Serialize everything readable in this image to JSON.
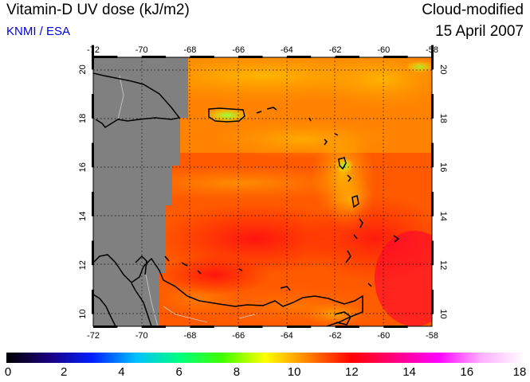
{
  "header": {
    "title": "Vitamin-D UV dose (kJ/m2)",
    "source": "KNMI / ESA",
    "product": "Cloud-modified",
    "date": "15 April 2007"
  },
  "map": {
    "lon_range": [
      -72,
      -58
    ],
    "lat_range": [
      9.5,
      20.5
    ],
    "lon_ticks": [
      "-72",
      "-70",
      "-68",
      "-66",
      "-64",
      "-62",
      "-60",
      "-58"
    ],
    "lat_ticks": [
      "10",
      "12",
      "14",
      "16",
      "18",
      "20"
    ],
    "no_data_color": "#808080",
    "coastline_color": "#000000",
    "border_color": "#cccccc",
    "gridline_style": "dotted"
  },
  "colorbar": {
    "min": 0,
    "max": 18,
    "labels": [
      "0",
      "2",
      "4",
      "6",
      "8",
      "10",
      "12",
      "14",
      "16",
      "18"
    ],
    "colors": [
      "#000000",
      "#1a0080",
      "#0020ff",
      "#00c0ff",
      "#00ff80",
      "#40ff00",
      "#ffff00",
      "#ff8000",
      "#ff0000",
      "#ff0080",
      "#ff00ff",
      "#ffb0ff",
      "#ffffff"
    ]
  }
}
